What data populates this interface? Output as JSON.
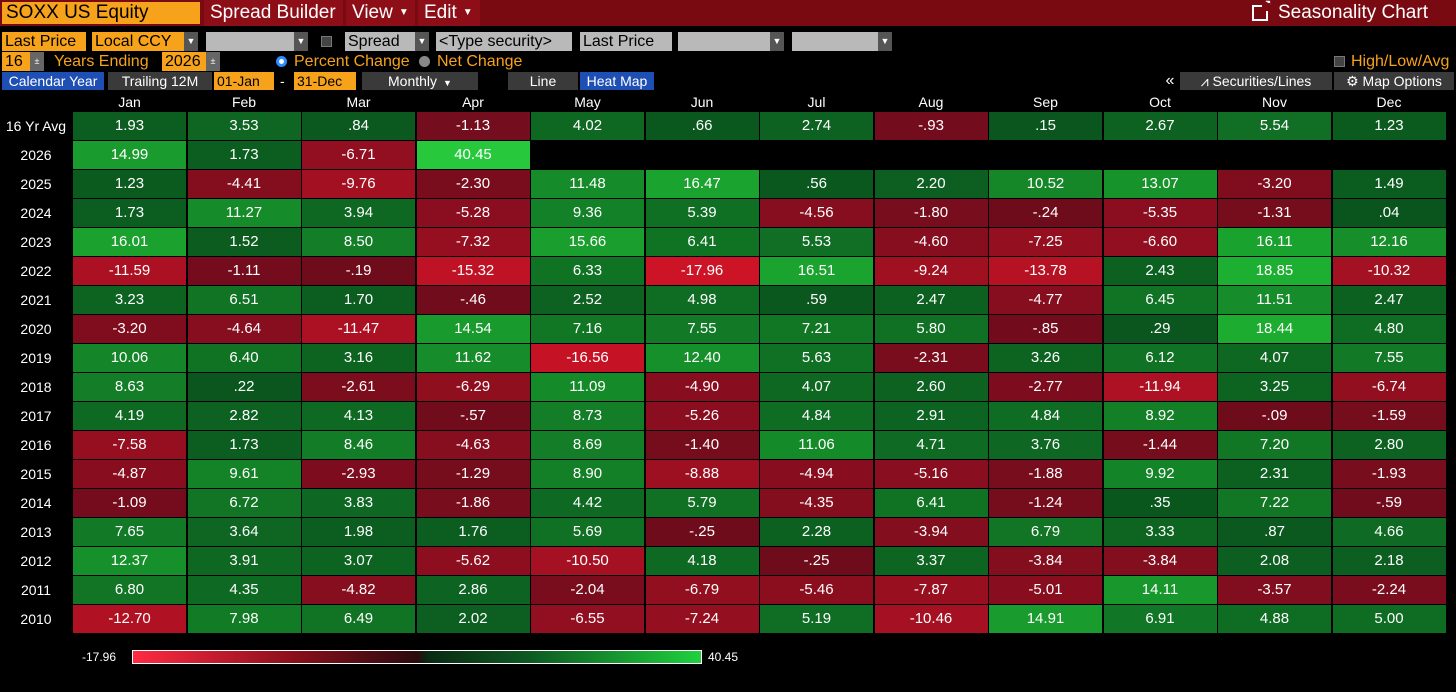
{
  "titlebar": {
    "ticker": "SOXX US Equity",
    "menu_spread_builder": "Spread Builder",
    "menu_view": "View",
    "menu_edit": "Edit",
    "seasonality_chart": "Seasonality Chart"
  },
  "controls": {
    "field1": "Last Price",
    "currency": "Local CCY",
    "blank1": "",
    "spread": "Spread",
    "type_security": "<Type security>",
    "field2": "Last Price",
    "blank2": "",
    "blank3": "",
    "years": "16",
    "years_ending_label": "Years Ending",
    "ending_year": "2026",
    "percent_change": "Percent Change",
    "net_change": "Net Change",
    "high_low_avg": "High/Low/Avg"
  },
  "tabs": {
    "calendar_year": "Calendar Year",
    "trailing_12m": "Trailing 12M",
    "start_date": "01-Jan",
    "dash": "-",
    "end_date": "31-Dec",
    "period": "Monthly",
    "line": "Line",
    "heat_map": "Heat Map",
    "collapse": "«",
    "securities_lines": "Securities/Lines",
    "map_options": "Map Options"
  },
  "colors": {
    "title_bg": "#7a0a12",
    "accent_orange": "#f7a21b",
    "active_tab": "#1e4fb4"
  },
  "chart_data": {
    "type": "heatmap",
    "columns": [
      "Jan",
      "Feb",
      "Mar",
      "Apr",
      "May",
      "Jun",
      "Jul",
      "Aug",
      "Sep",
      "Oct",
      "Nov",
      "Dec"
    ],
    "rows": [
      {
        "label": "16 Yr Avg",
        "values": [
          "1.93",
          "3.53",
          ".84",
          "-1.13",
          "4.02",
          ".66",
          "2.74",
          "-.93",
          ".15",
          "2.67",
          "5.54",
          "1.23"
        ]
      },
      {
        "label": "2026",
        "values": [
          "14.99",
          "1.73",
          "-6.71",
          "40.45"
        ]
      },
      {
        "label": "2025",
        "values": [
          "1.23",
          "-4.41",
          "-9.76",
          "-2.30",
          "11.48",
          "16.47",
          ".56",
          "2.20",
          "10.52",
          "13.07",
          "-3.20",
          "1.49"
        ]
      },
      {
        "label": "2024",
        "values": [
          "1.73",
          "11.27",
          "3.94",
          "-5.28",
          "9.36",
          "5.39",
          "-4.56",
          "-1.80",
          "-.24",
          "-5.35",
          "-1.31",
          ".04"
        ]
      },
      {
        "label": "2023",
        "values": [
          "16.01",
          "1.52",
          "8.50",
          "-7.32",
          "15.66",
          "6.41",
          "5.53",
          "-4.60",
          "-7.25",
          "-6.60",
          "16.11",
          "12.16"
        ]
      },
      {
        "label": "2022",
        "values": [
          "-11.59",
          "-1.11",
          "-.19",
          "-15.32",
          "6.33",
          "-17.96",
          "16.51",
          "-9.24",
          "-13.78",
          "2.43",
          "18.85",
          "-10.32"
        ]
      },
      {
        "label": "2021",
        "values": [
          "3.23",
          "6.51",
          "1.70",
          "-.46",
          "2.52",
          "4.98",
          ".59",
          "2.47",
          "-4.77",
          "6.45",
          "11.51",
          "2.47"
        ]
      },
      {
        "label": "2020",
        "values": [
          "-3.20",
          "-4.64",
          "-11.47",
          "14.54",
          "7.16",
          "7.55",
          "7.21",
          "5.80",
          "-.85",
          ".29",
          "18.44",
          "4.80"
        ]
      },
      {
        "label": "2019",
        "values": [
          "10.06",
          "6.40",
          "3.16",
          "11.62",
          "-16.56",
          "12.40",
          "5.63",
          "-2.31",
          "3.26",
          "6.12",
          "4.07",
          "7.55"
        ]
      },
      {
        "label": "2018",
        "values": [
          "8.63",
          ".22",
          "-2.61",
          "-6.29",
          "11.09",
          "-4.90",
          "4.07",
          "2.60",
          "-2.77",
          "-11.94",
          "3.25",
          "-6.74"
        ]
      },
      {
        "label": "2017",
        "values": [
          "4.19",
          "2.82",
          "4.13",
          "-.57",
          "8.73",
          "-5.26",
          "4.84",
          "2.91",
          "4.84",
          "8.92",
          "-.09",
          "-1.59"
        ]
      },
      {
        "label": "2016",
        "values": [
          "-7.58",
          "1.73",
          "8.46",
          "-4.63",
          "8.69",
          "-1.40",
          "11.06",
          "4.71",
          "3.76",
          "-1.44",
          "7.20",
          "2.80"
        ]
      },
      {
        "label": "2015",
        "values": [
          "-4.87",
          "9.61",
          "-2.93",
          "-1.29",
          "8.90",
          "-8.88",
          "-4.94",
          "-5.16",
          "-1.88",
          "9.92",
          "2.31",
          "-1.93"
        ]
      },
      {
        "label": "2014",
        "values": [
          "-1.09",
          "6.72",
          "3.83",
          "-1.86",
          "4.42",
          "5.79",
          "-4.35",
          "6.41",
          "-1.24",
          ".35",
          "7.22",
          "-.59"
        ]
      },
      {
        "label": "2013",
        "values": [
          "7.65",
          "3.64",
          "1.98",
          "1.76",
          "5.69",
          "-.25",
          "2.28",
          "-3.94",
          "6.79",
          "3.33",
          ".87",
          "4.66"
        ]
      },
      {
        "label": "2012",
        "values": [
          "12.37",
          "3.91",
          "3.07",
          "-5.62",
          "-10.50",
          "4.18",
          "-.25",
          "3.37",
          "-3.84",
          "-3.84",
          "2.08",
          "2.18"
        ]
      },
      {
        "label": "2011",
        "values": [
          "6.80",
          "4.35",
          "-4.82",
          "2.86",
          "-2.04",
          "-6.79",
          "-5.46",
          "-7.87",
          "-5.01",
          "14.11",
          "-3.57",
          "-2.24"
        ]
      },
      {
        "label": "2010",
        "values": [
          "-12.70",
          "7.98",
          "6.49",
          "2.02",
          "-6.55",
          "-7.24",
          "5.19",
          "-10.46",
          "14.91",
          "6.91",
          "4.88",
          "5.00"
        ]
      }
    ],
    "legend_min": "-17.96",
    "legend_max": "40.45",
    "scale_min": -17.96,
    "scale_max": 40.45
  }
}
